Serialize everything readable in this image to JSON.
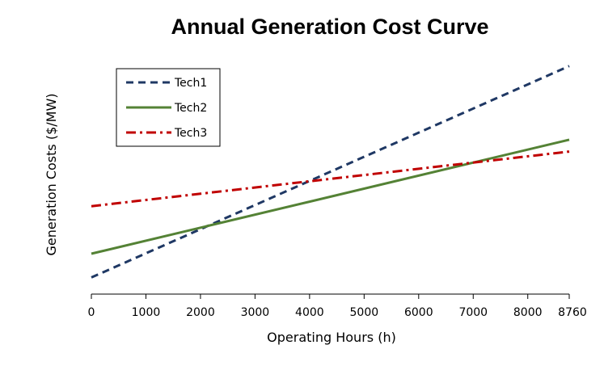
{
  "chart_data": {
    "type": "line",
    "title": "Annual Generation Cost Curve",
    "xlabel": "Operating Hours (h)",
    "ylabel": "Generation Costs ($/MW)",
    "xlim": [
      0,
      8760
    ],
    "ylim": [
      0,
      100
    ],
    "x_ticks": [
      0,
      1000,
      2000,
      3000,
      4000,
      5000,
      6000,
      7000,
      8000,
      8760
    ],
    "x_tick_labels": [
      "0",
      "1000",
      "2000",
      "3000",
      "4000",
      "5000",
      "6000",
      "7000",
      "8000",
      "8760"
    ],
    "y_ticks_shown": false,
    "grid": false,
    "legend_position": "top-left",
    "series": [
      {
        "name": "Tech1",
        "color": "#1f3864",
        "style": "dashed",
        "x": [
          0,
          8760
        ],
        "y": [
          7,
          96
        ]
      },
      {
        "name": "Tech2",
        "color": "#548235",
        "style": "solid",
        "x": [
          0,
          8760
        ],
        "y": [
          17,
          65
        ]
      },
      {
        "name": "Tech3",
        "color": "#c00000",
        "style": "dashdot",
        "x": [
          0,
          8760
        ],
        "y": [
          37,
          60
        ]
      }
    ]
  }
}
